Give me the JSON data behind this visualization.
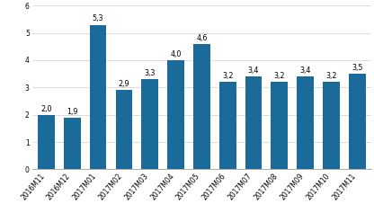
{
  "categories": [
    "2016M11",
    "2016M12",
    "2017M01",
    "2017M02",
    "2017M03",
    "2017M04",
    "2017M05",
    "2017M06",
    "2017M07",
    "2017M08",
    "2017M09",
    "2017M10",
    "2017M11"
  ],
  "values": [
    2.0,
    1.9,
    5.3,
    2.9,
    3.3,
    4.0,
    4.6,
    3.2,
    3.4,
    3.2,
    3.4,
    3.2,
    3.5
  ],
  "bar_color": "#1a6b9a",
  "ylim": [
    0,
    6
  ],
  "yticks": [
    0,
    1,
    2,
    3,
    4,
    5,
    6
  ],
  "grid_color": "#d0d0d0",
  "background_color": "#ffffff",
  "tick_fontsize": 5.5,
  "bar_label_fontsize": 5.8
}
